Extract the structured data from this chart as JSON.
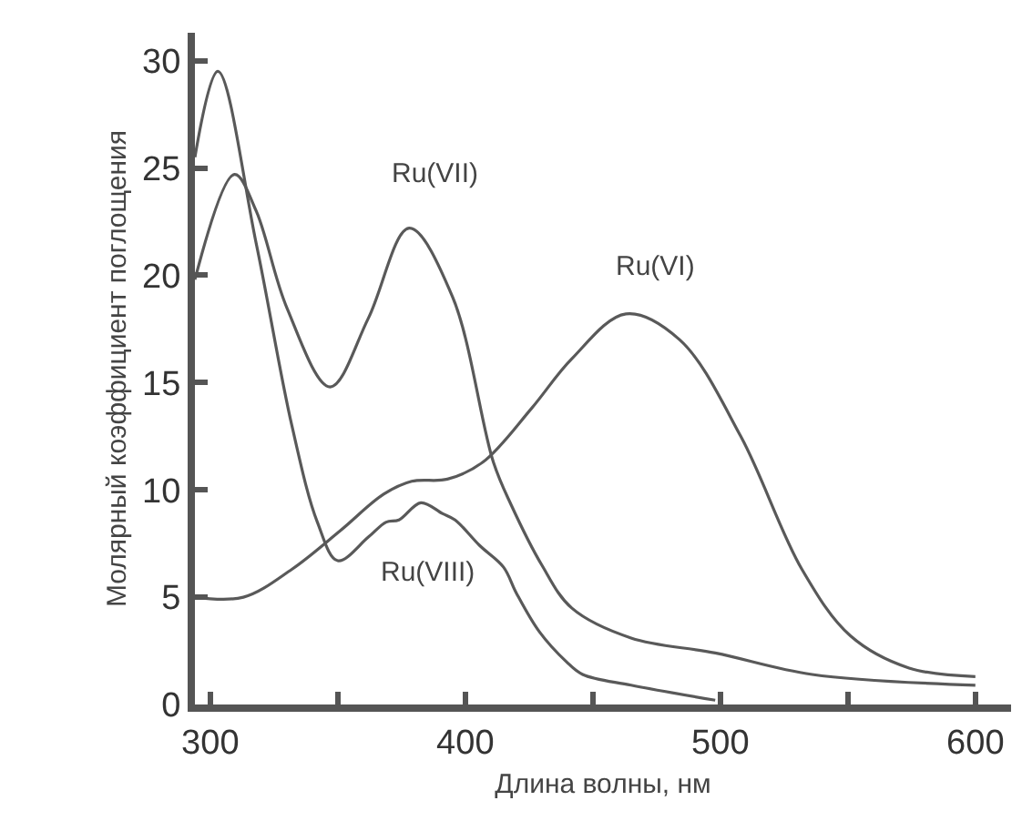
{
  "chart_data": {
    "type": "line",
    "xlabel": "Длина волны, нм",
    "ylabel": "Молярный коэффициент поглощения",
    "xlim": [
      294,
      614
    ],
    "xticks": [
      300,
      {
        "value": 350,
        "label": null
      },
      400,
      {
        "value": 450,
        "label": null
      },
      500,
      {
        "value": 550,
        "label": null
      },
      600
    ],
    "ylim": [
      0,
      31.3
    ],
    "yticks": [
      0,
      5,
      10,
      15,
      20,
      25,
      30
    ],
    "legend": false,
    "marker": "none",
    "line_style": "solid",
    "series": [
      {
        "name": "Ru(VII)",
        "color": "#595959",
        "x": [
          294,
          309.5,
          318,
          330,
          347,
          362,
          378,
          395,
          411,
          418,
          430,
          441.7,
          465,
          498,
          536,
          600
        ],
        "values": [
          19.8,
          24.7,
          23.0,
          18.5,
          14.8,
          18.0,
          22.2,
          19.0,
          11.3,
          9.3,
          6.5,
          4.5,
          3.1,
          2.4,
          1.4,
          0.9
        ]
      },
      {
        "name": "Ru(VIII)",
        "color": "#595959",
        "x": [
          294,
          303,
          318,
          332,
          342,
          350,
          362,
          369,
          374,
          382.6,
          391,
          396,
          405.7,
          415,
          420,
          429,
          439.6,
          446,
          465,
          498
        ],
        "values": [
          25.5,
          29.5,
          21.5,
          13.0,
          8.5,
          6.7,
          7.8,
          8.5,
          8.6,
          9.4,
          8.9,
          8.6,
          7.4,
          6.4,
          5.2,
          3.4,
          2.0,
          1.4,
          0.9,
          0.2
        ]
      },
      {
        "name": "Ru(VI)",
        "color": "#595959",
        "x": [
          294,
          313,
          332,
          351,
          368,
          379,
          393,
          407,
          426,
          441.7,
          463,
          484,
          508,
          532,
          551,
          574,
          600
        ],
        "values": [
          5.0,
          5.0,
          6.3,
          8.1,
          9.8,
          10.4,
          10.5,
          11.3,
          13.8,
          16.1,
          18.2,
          17.0,
          12.5,
          6.3,
          3.2,
          1.7,
          1.3
        ]
      }
    ]
  }
}
